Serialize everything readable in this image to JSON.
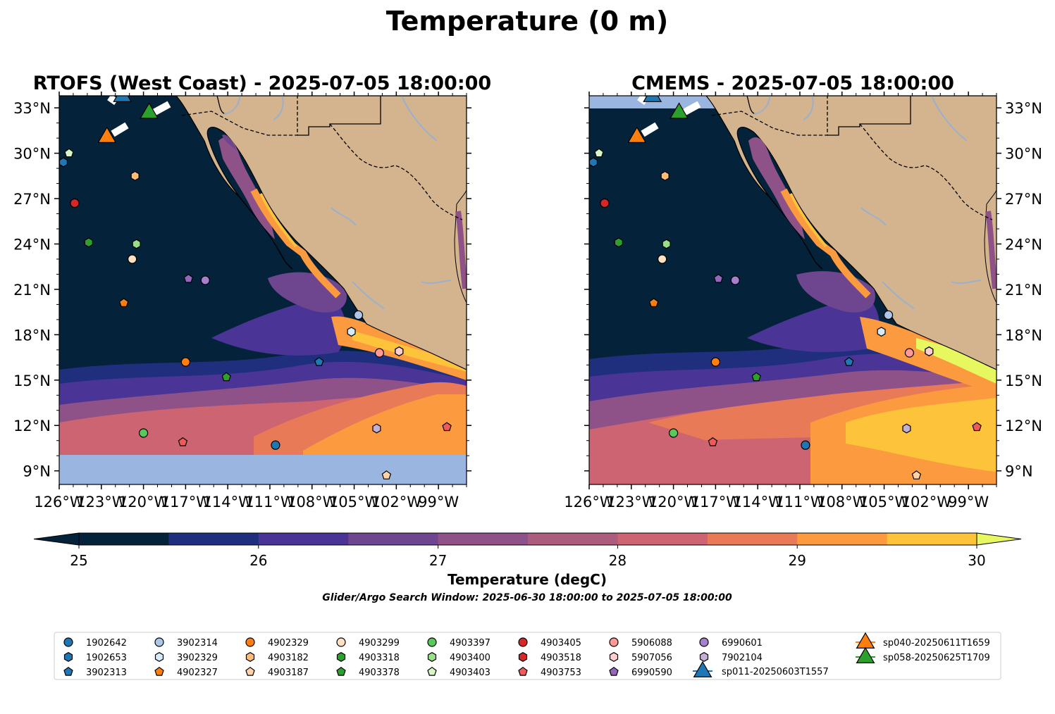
{
  "figure": {
    "title": "Temperature (0 m)",
    "colorbar_label": "Temperature (degC)",
    "search_window": "Glider/Argo Search Window: 2025-06-30 18:00:00 to 2025-07-05 18:00:00"
  },
  "panels": [
    {
      "title": "RTOFS (West Coast) - 2025-07-05 18:00:00"
    },
    {
      "title": "CMEMS - 2025-07-05 18:00:00"
    }
  ],
  "axes": {
    "lon_ticks": [
      "126°W",
      "123°W",
      "120°W",
      "117°W",
      "114°W",
      "111°W",
      "108°W",
      "105°W",
      "102°W",
      "99°W"
    ],
    "lat_ticks": [
      "33°N",
      "30°N",
      "27°N",
      "24°N",
      "21°N",
      "18°N",
      "15°N",
      "12°N",
      "9°N"
    ],
    "lon_values": [
      -126,
      -123,
      -120,
      -117,
      -114,
      -111,
      -108,
      -105,
      -102,
      -99
    ],
    "lat_values": [
      33,
      30,
      27,
      24,
      21,
      18,
      15,
      12,
      9
    ],
    "lon_range": [
      -126,
      -97
    ],
    "lat_range": [
      8.1,
      33.8
    ]
  },
  "colorbar": {
    "min": 25,
    "max": 30,
    "step": 0.5,
    "extend": "both",
    "ticks": [
      "25",
      "26",
      "27",
      "28",
      "29",
      "30"
    ],
    "colors": [
      "#04223a",
      "#1f2f7e",
      "#4a3596",
      "#6e468f",
      "#8e5289",
      "#ac5d7e",
      "#cc6472",
      "#e97a58",
      "#fb9a3e",
      "#fcc33b"
    ],
    "under_color": "#04223a",
    "over_color": "#e7f75f"
  },
  "colors": {
    "land": "#d3b48e",
    "nodata": "#99b5e0",
    "rivers": "#9ab0cf"
  },
  "legend": [
    {
      "label": "1902642",
      "shape": "circle",
      "color": "#1f77b4"
    },
    {
      "label": "1902653",
      "shape": "hexagon",
      "color": "#1f77b4"
    },
    {
      "label": "3902313",
      "shape": "pentagon",
      "color": "#1f77b4"
    },
    {
      "label": "3902314",
      "shape": "circle",
      "color": "#aec7e8"
    },
    {
      "label": "3902329",
      "shape": "hexagon",
      "color": "#d6ebfa"
    },
    {
      "label": "4902327",
      "shape": "pentagon",
      "color": "#ff7f0e"
    },
    {
      "label": "4902329",
      "shape": "circle",
      "color": "#ff7f0e"
    },
    {
      "label": "4903182",
      "shape": "hexagon",
      "color": "#ffbb78"
    },
    {
      "label": "4903187",
      "shape": "pentagon",
      "color": "#ffd3a8"
    },
    {
      "label": "4903299",
      "shape": "circle",
      "color": "#ffe0c2"
    },
    {
      "label": "4903318",
      "shape": "hexagon",
      "color": "#2ca02c"
    },
    {
      "label": "4903378",
      "shape": "pentagon",
      "color": "#2ca02c"
    },
    {
      "label": "4903397",
      "shape": "circle",
      "color": "#59c959"
    },
    {
      "label": "4903400",
      "shape": "hexagon",
      "color": "#98df8a"
    },
    {
      "label": "4903403",
      "shape": "pentagon",
      "color": "#d8f7c8"
    },
    {
      "label": "4903405",
      "shape": "circle",
      "color": "#d62728"
    },
    {
      "label": "4903518",
      "shape": "hexagon",
      "color": "#d62728"
    },
    {
      "label": "4903753",
      "shape": "pentagon",
      "color": "#f05a5a"
    },
    {
      "label": "5906088",
      "shape": "circle",
      "color": "#ff9896"
    },
    {
      "label": "5907056",
      "shape": "hexagon",
      "color": "#ffd0cf"
    },
    {
      "label": "6990590",
      "shape": "pentagon",
      "color": "#9467bd"
    },
    {
      "label": "6990601",
      "shape": "circle",
      "color": "#a680cc"
    },
    {
      "label": "7902104",
      "shape": "hexagon",
      "color": "#c5b0d5"
    },
    {
      "label": "sp011-20250603T1557",
      "shape": "triangle",
      "color": "#1f77b4"
    },
    {
      "label": "sp040-20250611T1659",
      "shape": "triangle",
      "color": "#ff7f0e"
    },
    {
      "label": "sp058-20250625T1709",
      "shape": "triangle",
      "color": "#2ca02c"
    }
  ],
  "floats": [
    {
      "id": "1902642",
      "lon": -110.6,
      "lat": 10.7
    },
    {
      "id": "1902653",
      "lon": -125.7,
      "lat": 29.4
    },
    {
      "id": "3902313",
      "lon": -107.5,
      "lat": 16.2
    },
    {
      "id": "3902314",
      "lon": -104.7,
      "lat": 19.3
    },
    {
      "id": "3902329",
      "lon": -105.2,
      "lat": 18.2
    },
    {
      "id": "4902327",
      "lon": -121.4,
      "lat": 20.1
    },
    {
      "id": "4902329",
      "lon": -117.0,
      "lat": 16.2
    },
    {
      "id": "4903182",
      "lon": -120.6,
      "lat": 28.5
    },
    {
      "id": "4903187",
      "lon": -102.7,
      "lat": 8.7
    },
    {
      "id": "4903299",
      "lon": -120.8,
      "lat": 23.0
    },
    {
      "id": "4903318",
      "lon": -123.9,
      "lat": 24.1
    },
    {
      "id": "4903378",
      "lon": -114.1,
      "lat": 15.2
    },
    {
      "id": "4903397",
      "lon": -120.0,
      "lat": 11.5
    },
    {
      "id": "4903400",
      "lon": -120.5,
      "lat": 24.0
    },
    {
      "id": "4903403",
      "lon": -125.3,
      "lat": 30.0
    },
    {
      "id": "4903405",
      "lon": -124.9,
      "lat": 26.7
    },
    {
      "id": "4903518",
      "lon": -101.8,
      "lat": 16.9
    },
    {
      "id": "4903753",
      "lon": -117.2,
      "lat": 10.9
    },
    {
      "id": "5906088",
      "lon": -103.2,
      "lat": 16.8
    },
    {
      "id": "5907056",
      "lon": -101.8,
      "lat": 16.9
    },
    {
      "id": "6990590",
      "lon": -116.8,
      "lat": 21.7
    },
    {
      "id": "6990601",
      "lon": -115.6,
      "lat": 21.6
    },
    {
      "id": "7902104",
      "lon": -103.4,
      "lat": 11.8
    },
    {
      "id": "4903753",
      "lon": -98.4,
      "lat": 11.9
    }
  ],
  "gliders": [
    {
      "id": "sp011-20250603T1557",
      "lon": -121.5,
      "lat": 33.9
    },
    {
      "id": "sp040-20250611T1659",
      "lon": -122.6,
      "lat": 31.2
    },
    {
      "id": "sp058-20250625T1709",
      "lon": -119.6,
      "lat": 32.8
    }
  ]
}
